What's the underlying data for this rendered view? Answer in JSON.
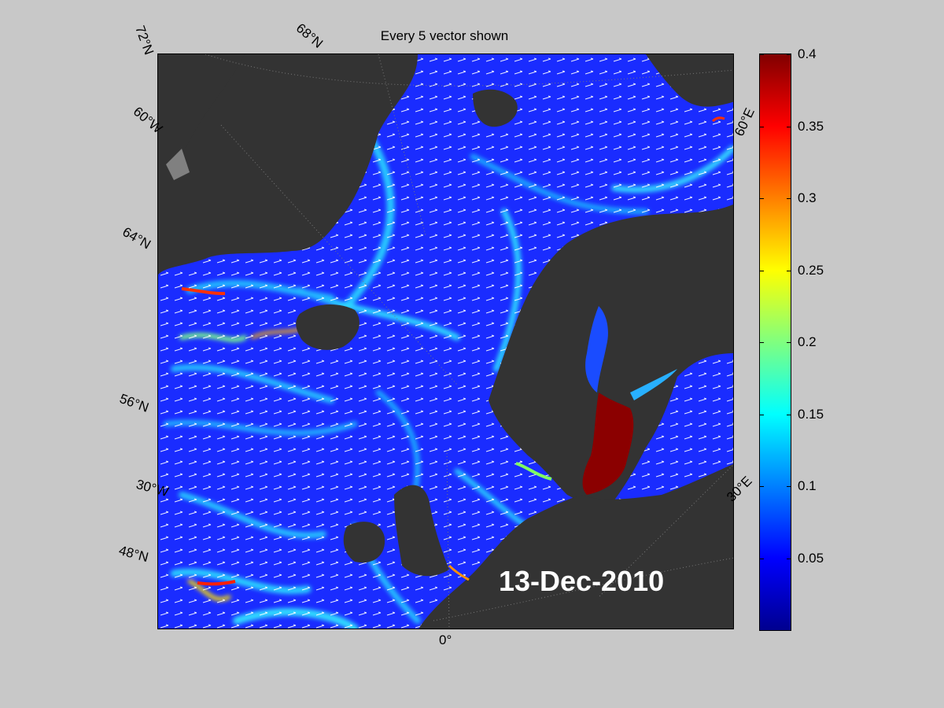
{
  "title": "Every 5 vector shown",
  "date_label": "13-Dec-2010",
  "graticule_labels": {
    "lat_72": "72°N",
    "lat_68": "68°N",
    "lat_64": "64°N",
    "lat_56": "56°N",
    "lat_48": "48°N",
    "lon_60w": "60°W",
    "lon_30w": "30°W",
    "lon_0": "0°",
    "lon_30e": "30°E",
    "lon_60e": "60°E"
  },
  "colorbar": {
    "min": 0,
    "max": 0.4,
    "ticks": [
      "0.4",
      "0.35",
      "0.3",
      "0.25",
      "0.2",
      "0.15",
      "0.1",
      "0.05"
    ],
    "colormap": "jet"
  },
  "colors": {
    "ocean_base": "#1a2cff",
    "land": "#333333",
    "ice": "#808080",
    "arrows": "#ffffff",
    "high_speed": "#8b0000"
  }
}
